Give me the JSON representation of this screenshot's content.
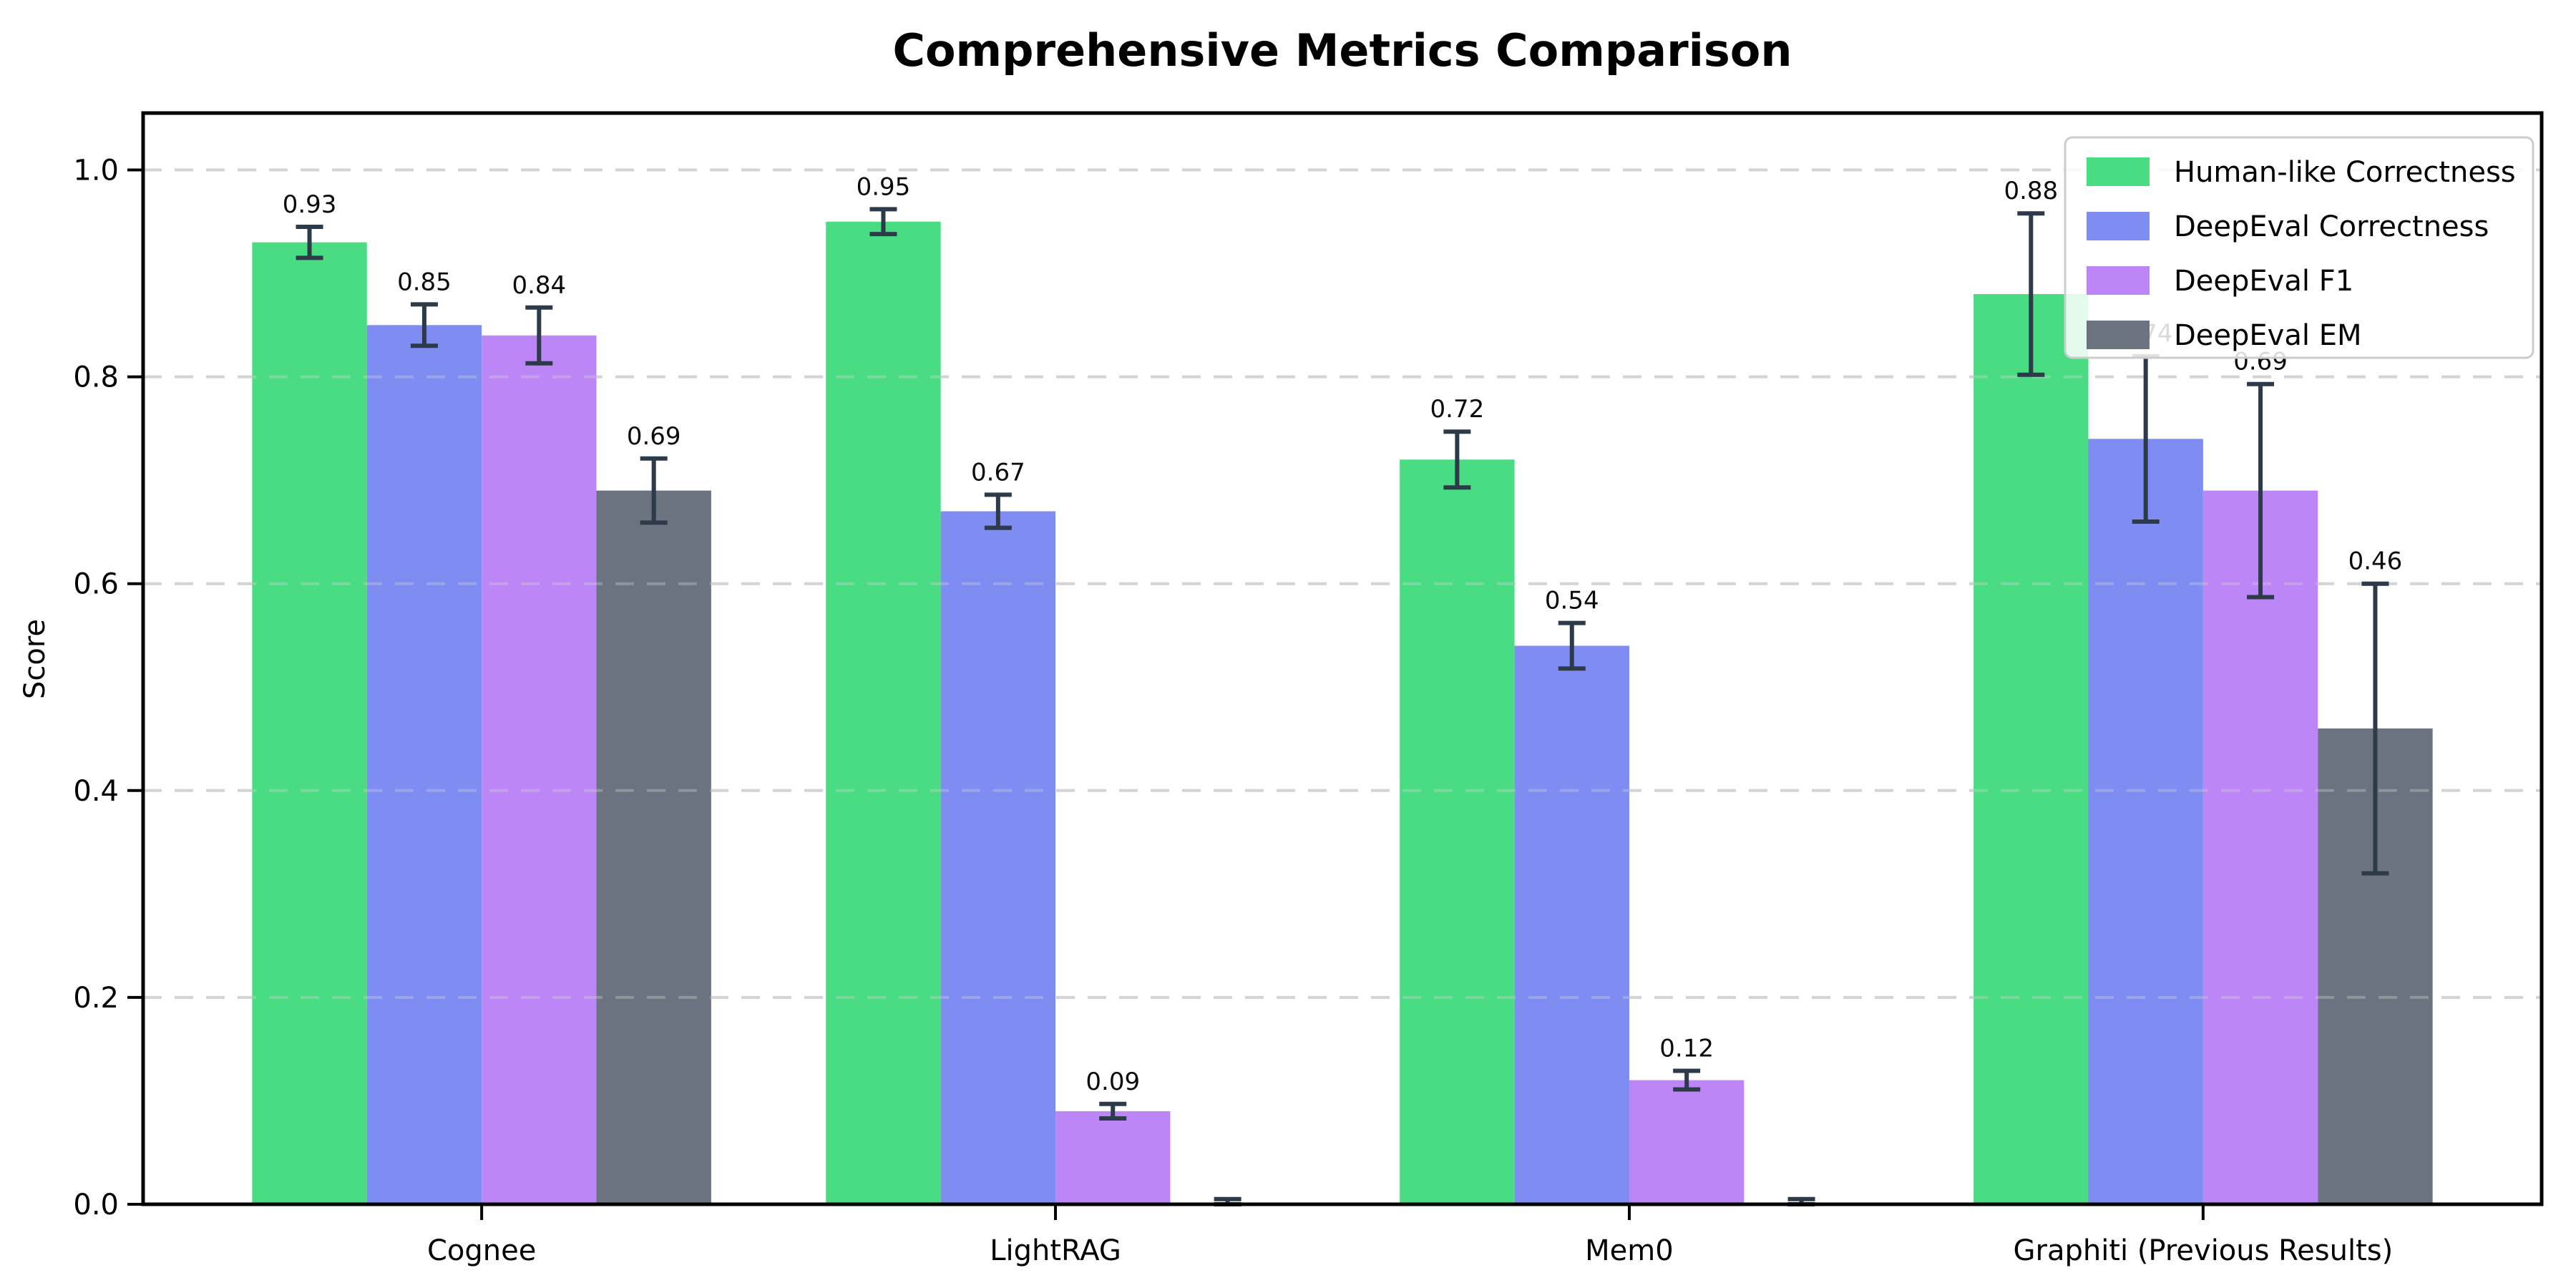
{
  "chart_data": {
    "type": "bar",
    "title": "Comprehensive Metrics Comparison",
    "xlabel": "",
    "ylabel": "Score",
    "categories": [
      "Cognee",
      "LightRAG",
      "Mem0",
      "Graphiti (Previous Results)"
    ],
    "series": [
      {
        "name": "Human-like Correctness",
        "color": "#4adc82",
        "values": [
          0.93,
          0.95,
          0.72,
          0.88
        ],
        "errors": [
          0.015,
          0.012,
          0.027,
          0.078
        ],
        "labels": [
          "0.93",
          "0.95",
          "0.72",
          "0.88"
        ]
      },
      {
        "name": "DeepEval Correctness",
        "color": "#7f8cf2",
        "values": [
          0.85,
          0.67,
          0.54,
          0.74
        ],
        "errors": [
          0.02,
          0.016,
          0.022,
          0.08
        ],
        "labels": [
          "0.85",
          "0.67",
          "0.54",
          "0.74"
        ]
      },
      {
        "name": "DeepEval F1",
        "color": "#bd86f6",
        "values": [
          0.84,
          0.09,
          0.12,
          0.69
        ],
        "errors": [
          0.027,
          0.007,
          0.009,
          0.103
        ],
        "labels": [
          "0.84",
          "0.09",
          "0.12",
          "0.69"
        ]
      },
      {
        "name": "DeepEval EM",
        "color": "#6b7280",
        "values": [
          0.69,
          0.0,
          0.0,
          0.46
        ],
        "errors": [
          0.031,
          0.005,
          0.005,
          0.14
        ],
        "labels": [
          "0.69",
          "",
          "",
          "0.46"
        ]
      }
    ],
    "ylim": [
      0,
      1.055
    ],
    "yticks": [
      0.0,
      0.2,
      0.4,
      0.6,
      0.8,
      1.0
    ],
    "ytick_labels": [
      "0.0",
      "0.2",
      "0.4",
      "0.6",
      "0.8",
      "1.0"
    ],
    "grid": "horizontal-dashed",
    "grid_color": "#d4d4d4",
    "errorbar_color": "#2d3a4a",
    "legend_position": "upper-right",
    "bar_width": 0.2,
    "bar_offsets": [
      -0.3,
      -0.1,
      0.1,
      0.3
    ],
    "x_extent": [
      -0.59,
      3.59
    ]
  }
}
